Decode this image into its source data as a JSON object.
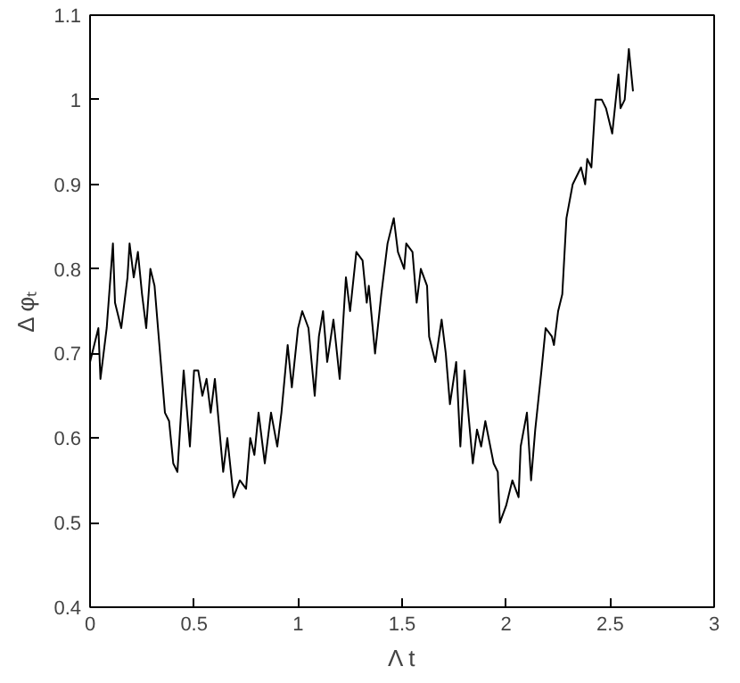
{
  "chart_data": {
    "type": "line",
    "xlabel": "Λ t",
    "ylabel": "Δ φₜ",
    "xlim": [
      0,
      3
    ],
    "xticks": [
      0,
      0.5,
      1,
      1.5,
      2,
      2.5,
      3
    ],
    "ylim": [
      0.4,
      1.1
    ],
    "yticks": [
      0.4,
      0.5,
      0.6,
      0.7,
      0.8,
      0.9,
      1,
      1.1
    ],
    "grid": false,
    "marker": "none",
    "line_style": "solid",
    "series": [
      {
        "color": "#000000",
        "x": [
          0,
          0.02,
          0.04,
          0.05,
          0.08,
          0.11,
          0.12,
          0.15,
          0.18,
          0.19,
          0.21,
          0.23,
          0.25,
          0.27,
          0.29,
          0.31,
          0.33,
          0.36,
          0.38,
          0.4,
          0.42,
          0.45,
          0.48,
          0.5,
          0.52,
          0.54,
          0.56,
          0.58,
          0.6,
          0.64,
          0.66,
          0.69,
          0.72,
          0.75,
          0.77,
          0.79,
          0.81,
          0.84,
          0.87,
          0.9,
          0.92,
          0.95,
          0.97,
          1.0,
          1.02,
          1.05,
          1.08,
          1.1,
          1.12,
          1.14,
          1.17,
          1.2,
          1.23,
          1.25,
          1.28,
          1.31,
          1.33,
          1.34,
          1.37,
          1.4,
          1.43,
          1.46,
          1.48,
          1.51,
          1.52,
          1.55,
          1.57,
          1.59,
          1.62,
          1.63,
          1.66,
          1.69,
          1.71,
          1.73,
          1.76,
          1.78,
          1.8,
          1.84,
          1.86,
          1.88,
          1.9,
          1.94,
          1.96,
          1.97,
          2.0,
          2.03,
          2.06,
          2.07,
          2.1,
          2.12,
          2.14,
          2.17,
          2.19,
          2.22,
          2.23,
          2.25,
          2.27,
          2.29,
          2.32,
          2.36,
          2.38,
          2.39,
          2.41,
          2.43,
          2.46,
          2.48,
          2.51,
          2.54,
          2.55,
          2.57,
          2.59,
          2.61
        ],
        "values": [
          0.69,
          0.71,
          0.73,
          0.67,
          0.73,
          0.83,
          0.76,
          0.73,
          0.79,
          0.83,
          0.79,
          0.82,
          0.77,
          0.73,
          0.8,
          0.78,
          0.72,
          0.63,
          0.62,
          0.57,
          0.56,
          0.68,
          0.59,
          0.68,
          0.68,
          0.65,
          0.67,
          0.63,
          0.67,
          0.56,
          0.6,
          0.53,
          0.55,
          0.54,
          0.6,
          0.58,
          0.63,
          0.57,
          0.63,
          0.59,
          0.63,
          0.71,
          0.66,
          0.73,
          0.75,
          0.73,
          0.65,
          0.72,
          0.75,
          0.69,
          0.74,
          0.67,
          0.79,
          0.75,
          0.82,
          0.81,
          0.76,
          0.78,
          0.7,
          0.77,
          0.83,
          0.86,
          0.82,
          0.8,
          0.83,
          0.82,
          0.76,
          0.8,
          0.78,
          0.72,
          0.69,
          0.74,
          0.7,
          0.64,
          0.69,
          0.59,
          0.68,
          0.57,
          0.61,
          0.59,
          0.62,
          0.57,
          0.56,
          0.5,
          0.52,
          0.55,
          0.53,
          0.59,
          0.63,
          0.55,
          0.61,
          0.68,
          0.73,
          0.72,
          0.71,
          0.75,
          0.77,
          0.86,
          0.9,
          0.92,
          0.9,
          0.93,
          0.92,
          1.0,
          1.0,
          0.99,
          0.96,
          1.03,
          0.99,
          1.0,
          1.06,
          1.01
        ]
      }
    ]
  }
}
